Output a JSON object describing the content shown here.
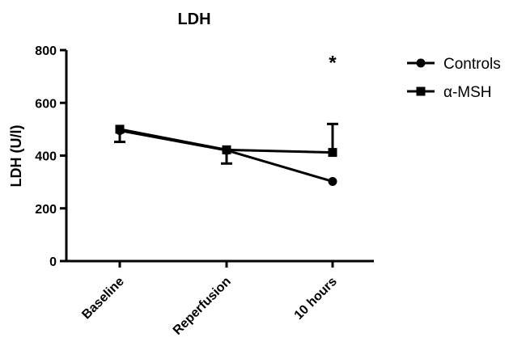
{
  "chart_data": {
    "type": "line",
    "title": "LDH",
    "xlabel": "",
    "ylabel": "LDH (U/l)",
    "categories": [
      "Baseline",
      "Reperfusion",
      "10 hours"
    ],
    "ylim": [
      0,
      800
    ],
    "yticks": [
      "0",
      "200",
      "400",
      "600",
      "800"
    ],
    "grid": false,
    "legend_position": "top-right",
    "series": [
      {
        "name": "Controls",
        "marker": "circle",
        "color": "#000000",
        "values": [
          495,
          420,
          302
        ],
        "error_plus": [
          0,
          0,
          0
        ],
        "error_minus": [
          0,
          50,
          0
        ]
      },
      {
        "name": "α-MSH",
        "marker": "square",
        "color": "#000000",
        "values": [
          500,
          422,
          412
        ],
        "error_plus": [
          0,
          0,
          108
        ],
        "error_minus": [
          48,
          0,
          0
        ]
      }
    ],
    "annotations": [
      {
        "text": "*",
        "category": "10 hours",
        "y": 790
      }
    ]
  }
}
